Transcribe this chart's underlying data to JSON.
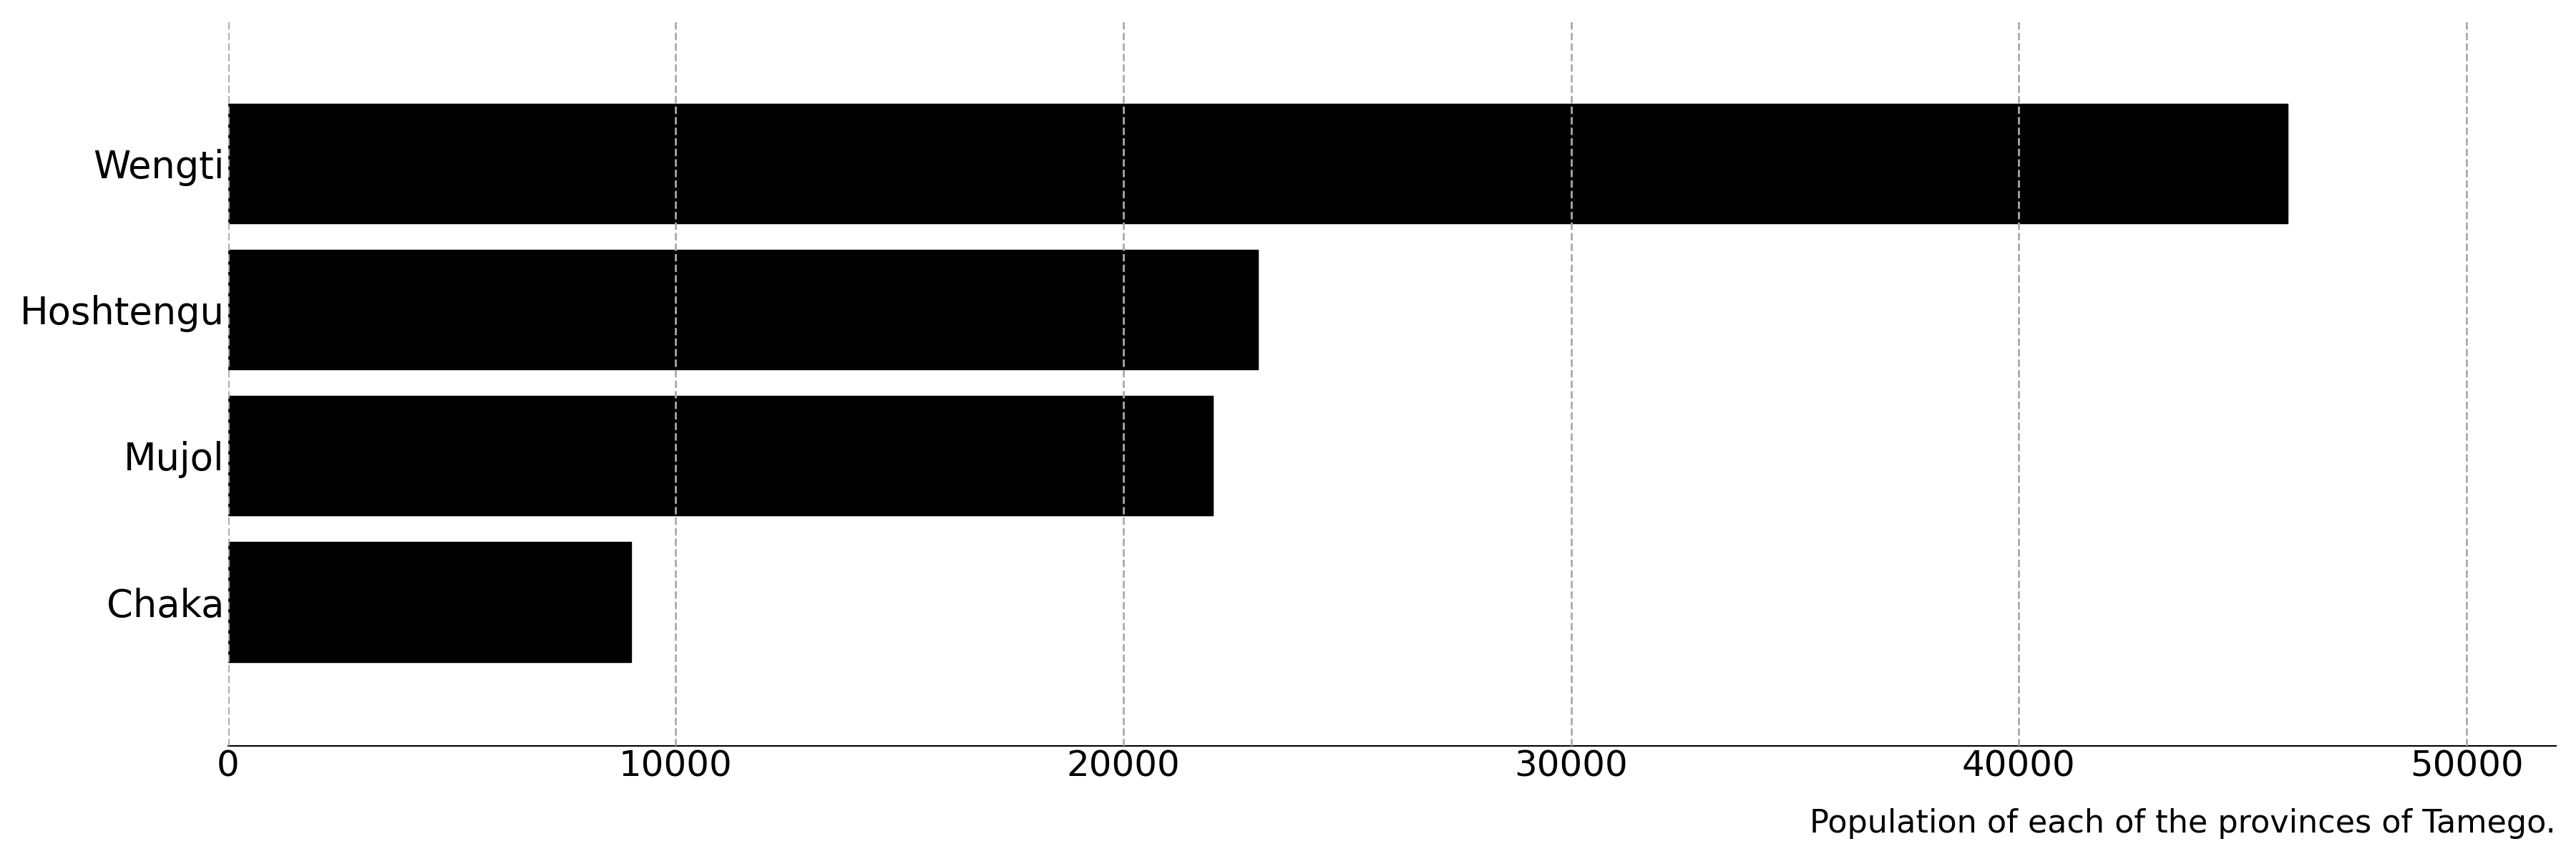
{
  "categories": [
    "Chaka",
    "Mujol",
    "Hoshtengu",
    "Wengti"
  ],
  "values": [
    9000,
    22000,
    23000,
    46000
  ],
  "bar_color": "#000000",
  "background_color": "#ffffff",
  "xlabel": "Population of each of the provinces of Tamego.",
  "xlim": [
    0,
    52000
  ],
  "xticks": [
    0,
    10000,
    20000,
    30000,
    40000,
    50000
  ],
  "grid_color": "#aaaaaa",
  "label_fontsize": 38,
  "tick_fontsize": 36,
  "xlabel_fontsize": 32,
  "bar_height": 0.82
}
